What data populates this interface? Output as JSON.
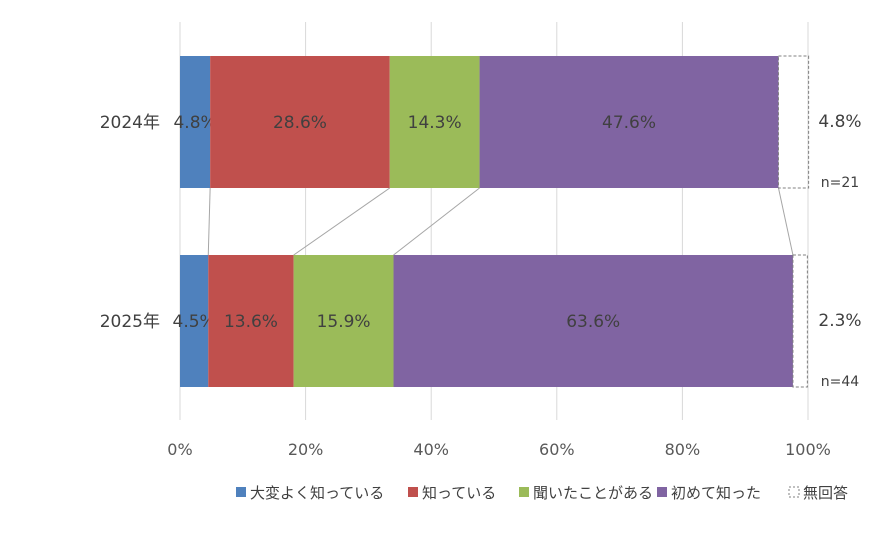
{
  "chart_data": {
    "type": "bar",
    "orientation": "horizontal",
    "stacked": true,
    "percent": true,
    "categories": [
      "2024年",
      "2025年"
    ],
    "series": [
      {
        "name": "大変よく知っている",
        "color": "#4f81bd",
        "values": [
          4.8,
          4.5
        ],
        "labels": [
          "4.8%",
          "4.5%"
        ]
      },
      {
        "name": "知っている",
        "color": "#c0504d",
        "values": [
          28.6,
          13.6
        ],
        "labels": [
          "28.6%",
          "13.6%"
        ]
      },
      {
        "name": "聞いたことがある",
        "color": "#9bbb59",
        "values": [
          14.3,
          15.9
        ],
        "labels": [
          "14.3%",
          "15.9%"
        ]
      },
      {
        "name": "初めて知った",
        "color": "#8064a2",
        "values": [
          47.6,
          63.6
        ],
        "labels": [
          "47.6%",
          "63.6%"
        ]
      },
      {
        "name": "無回答",
        "color": "none",
        "dashed": true,
        "values": [
          4.8,
          2.3
        ],
        "labels": [
          "4.8%",
          "2.3%"
        ]
      }
    ],
    "n_labels": [
      "n=21",
      "n=44"
    ],
    "xlim": [
      0,
      100
    ],
    "xticks": [
      "0%",
      "20%",
      "40%",
      "60%",
      "80%",
      "100%"
    ],
    "grid": true,
    "legend_position": "bottom"
  }
}
